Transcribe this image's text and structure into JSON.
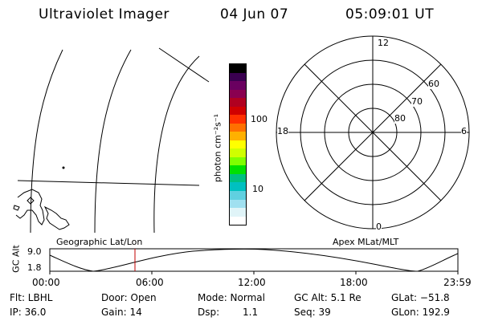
{
  "header": {
    "instrument": "Ultraviolet Imager",
    "date": "04 Jun 07",
    "time": "05:09:01 UT"
  },
  "colorbar": {
    "unit_label": "photon cm⁻²s⁻¹",
    "tick_labels": [
      "100",
      "10"
    ],
    "colors": [
      "#000000",
      "#3a0050",
      "#6a0060",
      "#8a0050",
      "#b00020",
      "#d00000",
      "#ff3000",
      "#ff7000",
      "#ffb000",
      "#ffff00",
      "#d0ff00",
      "#80ff00",
      "#00e000",
      "#00c080",
      "#00c0c0",
      "#60d0e0",
      "#a0e0f0",
      "#e0f4f8",
      "#ffffff"
    ]
  },
  "polar": {
    "hour_labels": {
      "top": "12",
      "left": "18",
      "right": "6",
      "bottom": "0"
    },
    "lat_labels": [
      "60",
      "70",
      "80"
    ]
  },
  "altitude_plot": {
    "left_label": "Geographic Lat/Lon",
    "right_label": "Apex MLat/MLT",
    "y_axis_label": "GC Alt",
    "y_ticks": [
      "9.0",
      "1.8"
    ],
    "x_ticks": [
      "00:00",
      "06:00",
      "12:00",
      "18:00",
      "23:59"
    ]
  },
  "footer": {
    "flt": "Flt: LBHL",
    "ip": "IP: 36.0",
    "door": "Door: Open",
    "gain": "Gain: 14",
    "mode": "Mode: Normal",
    "dsp_label": "Dsp:",
    "dsp_value": "1.1",
    "gc_alt": "GC Alt: 5.1 Re",
    "seq": "Seq: 39",
    "glat": "GLat: −51.8",
    "glon": "GLon: 192.9"
  }
}
